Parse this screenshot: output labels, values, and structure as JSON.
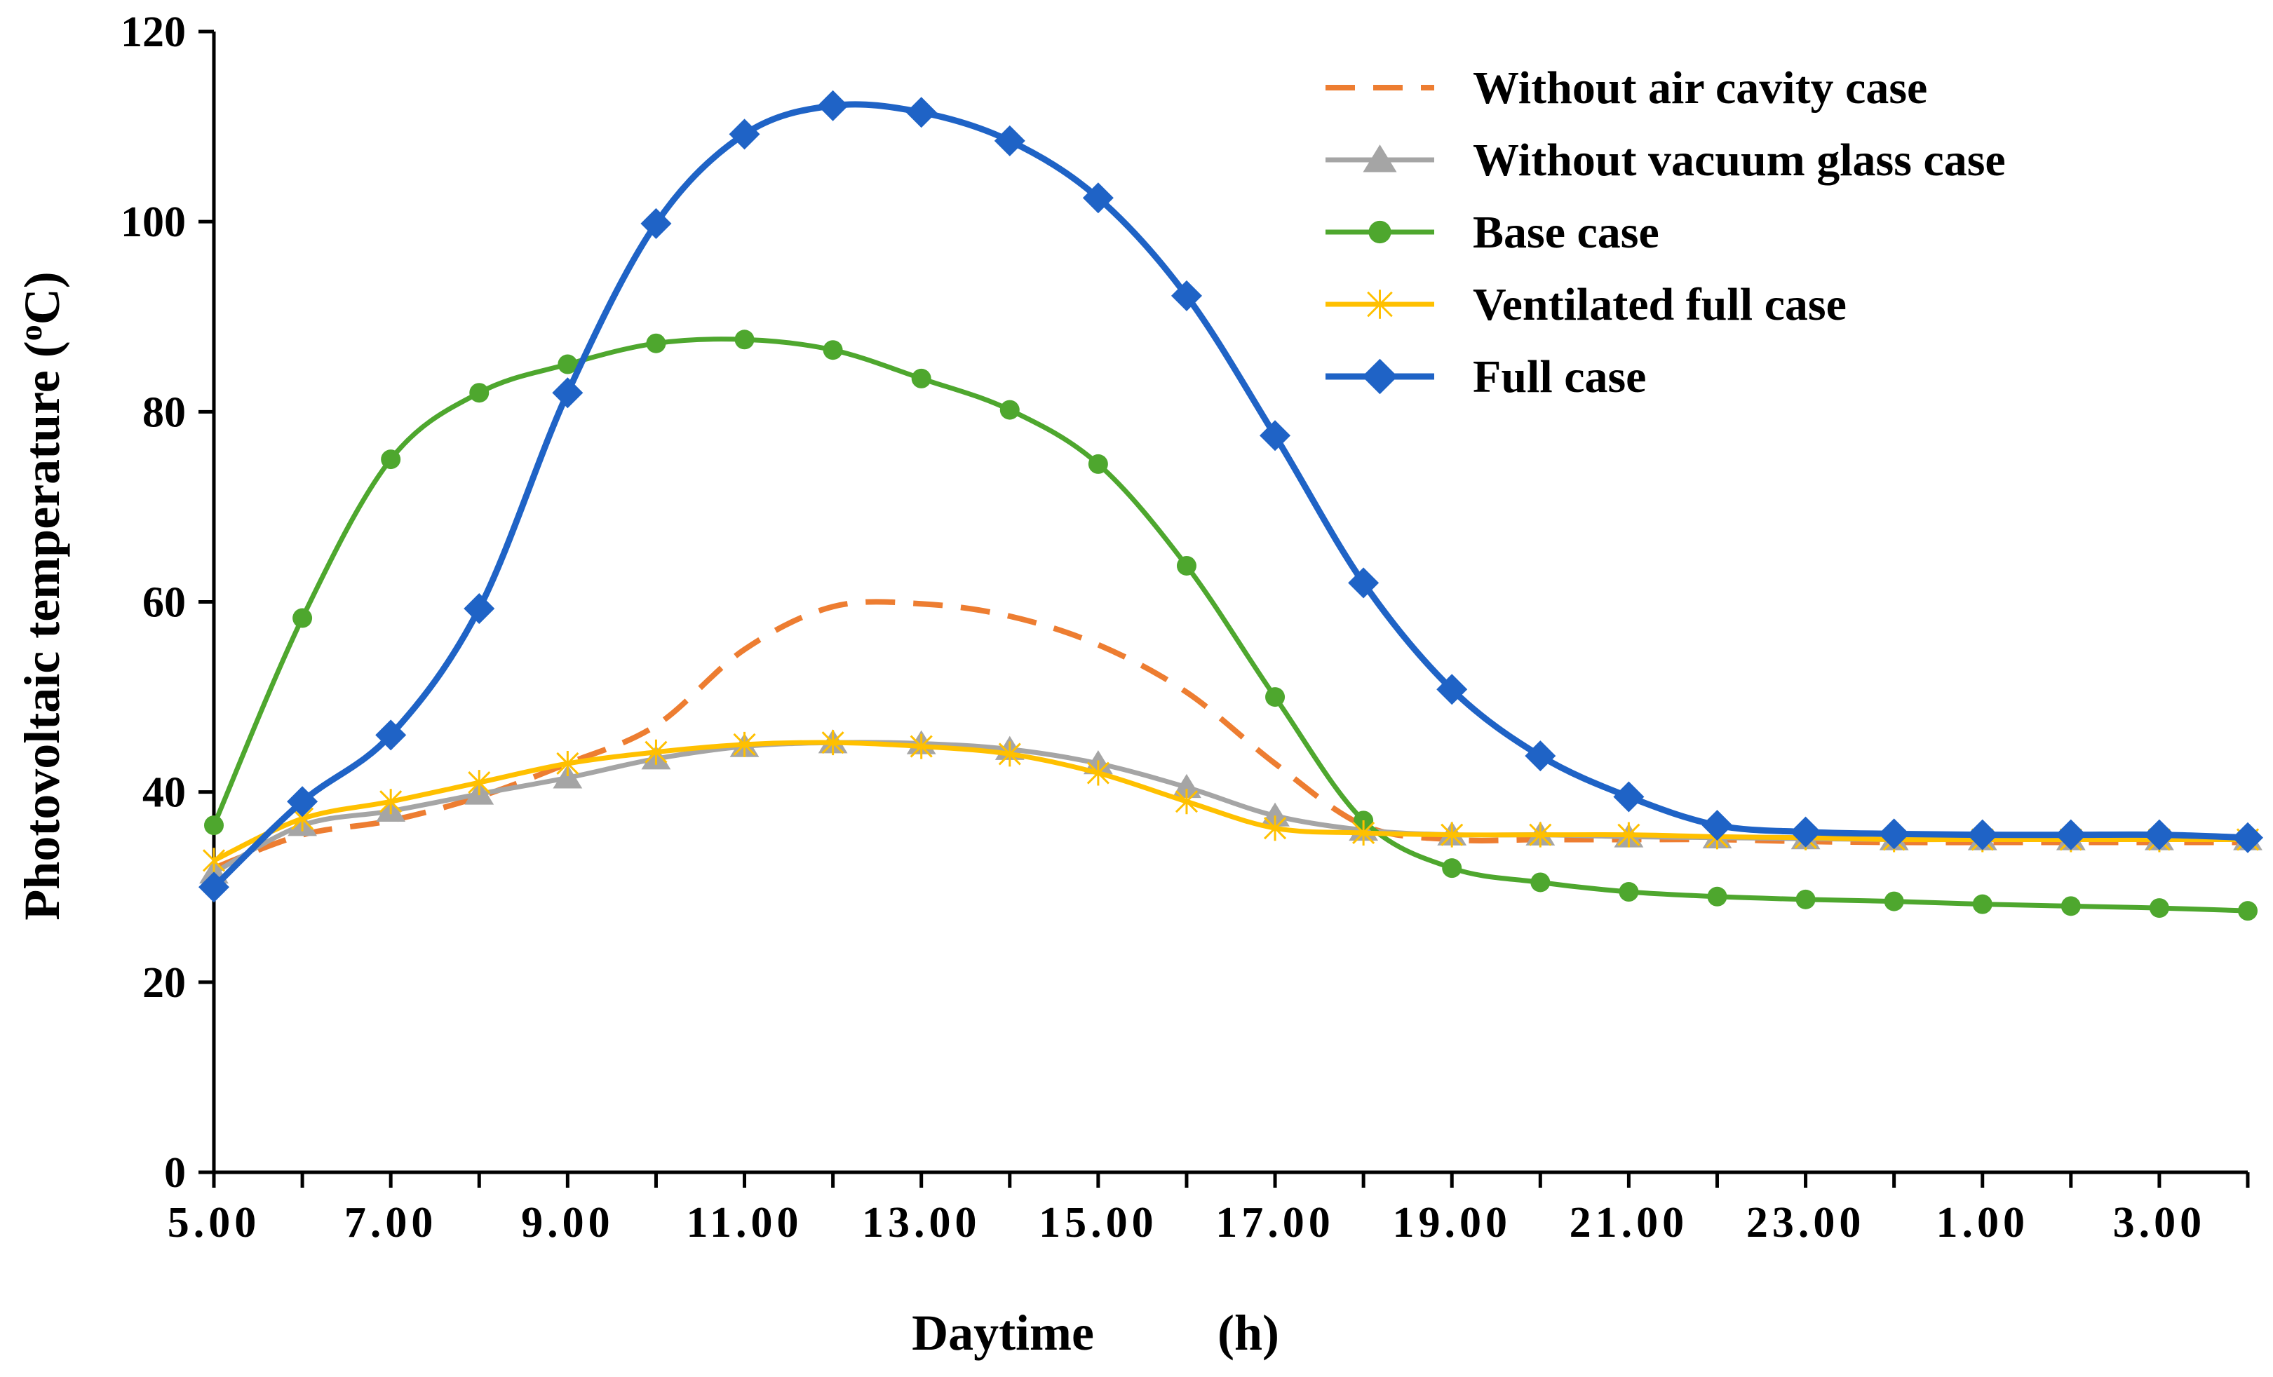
{
  "chart_data": {
    "type": "line",
    "title": "",
    "xlabel": "Daytime",
    "xlabel_unit": "(h)",
    "ylabel": "Photovoltaic temperature (°C)",
    "ylabel_main": "Photovoltaic temperature (",
    "ylabel_sup": "o",
    "ylabel_end": "C)",
    "ylim": [
      0,
      120
    ],
    "yticks": [
      0,
      20,
      40,
      60,
      80,
      100,
      120
    ],
    "x": [
      "5.00",
      "6.00",
      "7.00",
      "8.00",
      "9.00",
      "10.00",
      "11.00",
      "12.00",
      "13.00",
      "14.00",
      "15.00",
      "16.00",
      "17.00",
      "18.00",
      "19.00",
      "20.00",
      "21.00",
      "22.00",
      "23.00",
      "24.00",
      "1.00",
      "2.00",
      "3.00",
      "4.00"
    ],
    "xtick_labels": [
      "5.00",
      "",
      "7.00",
      "",
      "9.00",
      "",
      "11.00",
      "",
      "13.00",
      "",
      "15.00",
      "",
      "17.00",
      "",
      "19.00",
      "",
      "21.00",
      "",
      "23.00",
      "",
      "1.00",
      "",
      "3.00",
      ""
    ],
    "legend_position": "top-right",
    "series": [
      {
        "name": "Without air cavity case",
        "color": "#ED7D31",
        "style": "dashed",
        "marker": "none",
        "values": [
          32,
          35.5,
          37,
          39.5,
          43,
          47,
          55,
          59.5,
          59.8,
          58.5,
          55.5,
          50.5,
          43,
          36.5,
          35,
          35,
          35,
          35,
          34.8,
          34.7,
          34.7,
          34.7,
          34.7,
          34.7
        ]
      },
      {
        "name": "Without vacuum glass case",
        "color": "#A5A5A5",
        "style": "solid",
        "marker": "triangle",
        "values": [
          31.5,
          36.5,
          38,
          39.8,
          41.5,
          43.5,
          44.8,
          45.2,
          45.1,
          44.5,
          43,
          40.5,
          37.5,
          36,
          35.5,
          35.5,
          35.3,
          35.2,
          35.1,
          35,
          35,
          35,
          35,
          35
        ]
      },
      {
        "name": "Base case",
        "color": "#4EA72E",
        "style": "solid",
        "marker": "circle",
        "values": [
          36.5,
          58.3,
          75,
          82,
          85,
          87.2,
          87.6,
          86.5,
          83.5,
          80.2,
          74.5,
          63.8,
          50,
          37,
          32,
          30.5,
          29.5,
          29,
          28.7,
          28.5,
          28.2,
          28,
          27.8,
          27.5
        ]
      },
      {
        "name": "Ventilated full case",
        "color": "#FFC000",
        "style": "solid",
        "marker": "x",
        "values": [
          32.8,
          37.2,
          39,
          41,
          43,
          44.2,
          45,
          45.2,
          44.8,
          44,
          42,
          39,
          36.2,
          35.7,
          35.5,
          35.5,
          35.5,
          35.3,
          35.2,
          35,
          35,
          35,
          35,
          35
        ]
      },
      {
        "name": "Full case",
        "color": "#1F63C6",
        "style": "solid",
        "marker": "diamond",
        "values": [
          30,
          39,
          46,
          59.3,
          82,
          99.8,
          109.2,
          112.2,
          111.5,
          108.5,
          102.5,
          92.2,
          77.5,
          62,
          50.8,
          43.8,
          39.5,
          36.5,
          35.8,
          35.6,
          35.5,
          35.5,
          35.5,
          35.2
        ]
      }
    ]
  }
}
